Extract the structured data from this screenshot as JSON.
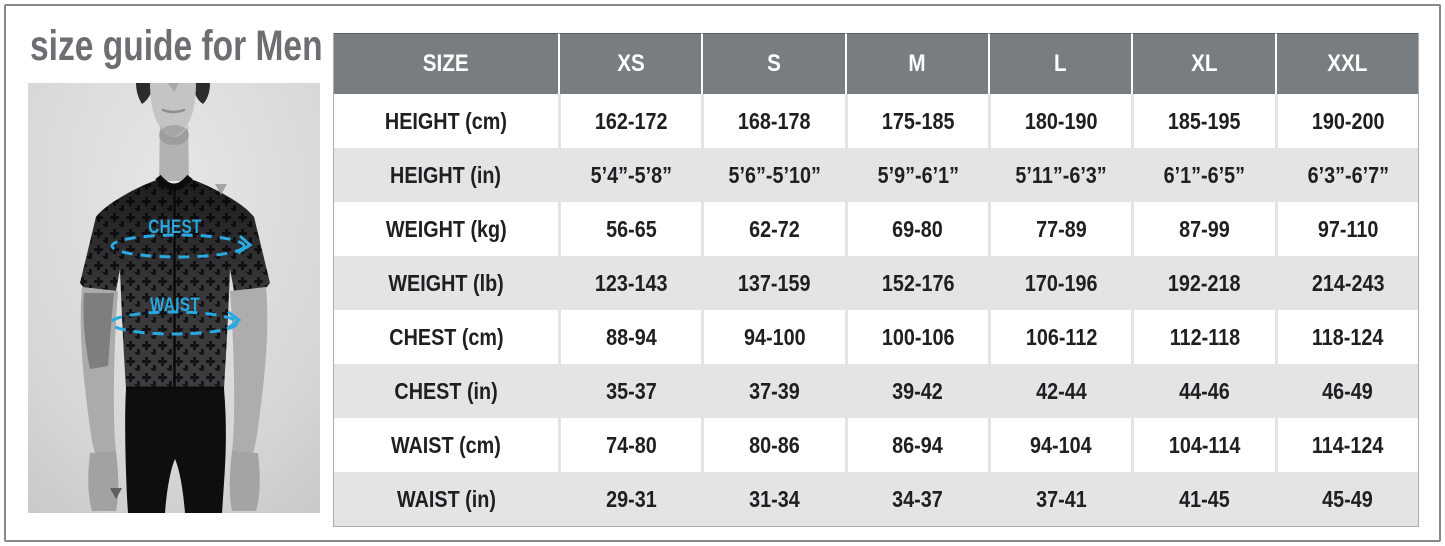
{
  "title": "size guide for Men",
  "figure": {
    "chest_label": "CHEST",
    "waist_label": "WAIST",
    "accent_color": "#2aa9e0"
  },
  "table": {
    "header": [
      "SIZE",
      "XS",
      "S",
      "M",
      "L",
      "XL",
      "XXL"
    ],
    "rows": [
      {
        "label": "HEIGHT (cm)",
        "values": [
          "162-172",
          "168-178",
          "175-185",
          "180-190",
          "185-195",
          "190-200"
        ]
      },
      {
        "label": "HEIGHT (in)",
        "values": [
          "5’4”-5’8”",
          "5’6”-5’10”",
          "5’9”-6’1”",
          "5’11”-6’3”",
          "6’1”-6’5”",
          "6’3”-6’7”"
        ]
      },
      {
        "label": "WEIGHT (kg)",
        "values": [
          "56-65",
          "62-72",
          "69-80",
          "77-89",
          "87-99",
          "97-110"
        ]
      },
      {
        "label": "WEIGHT (lb)",
        "values": [
          "123-143",
          "137-159",
          "152-176",
          "170-196",
          "192-218",
          "214-243"
        ]
      },
      {
        "label": "CHEST (cm)",
        "values": [
          "88-94",
          "94-100",
          "100-106",
          "106-112",
          "112-118",
          "118-124"
        ]
      },
      {
        "label": "CHEST (in)",
        "values": [
          "35-37",
          "37-39",
          "39-42",
          "42-44",
          "44-46",
          "46-49"
        ]
      },
      {
        "label": "WAIST (cm)",
        "values": [
          "74-80",
          "80-86",
          "86-94",
          "94-104",
          "104-114",
          "114-124"
        ]
      },
      {
        "label": "WAIST (in)",
        "values": [
          "29-31",
          "31-34",
          "34-37",
          "37-41",
          "41-45",
          "45-49"
        ]
      }
    ]
  },
  "colors": {
    "header_bg": "#777d81",
    "row_alt_bg": "#e2e4e6",
    "text": "#1f1f21",
    "title": "#6d6e71",
    "accent": "#2aa9e0",
    "frame_border": "#85888c"
  }
}
